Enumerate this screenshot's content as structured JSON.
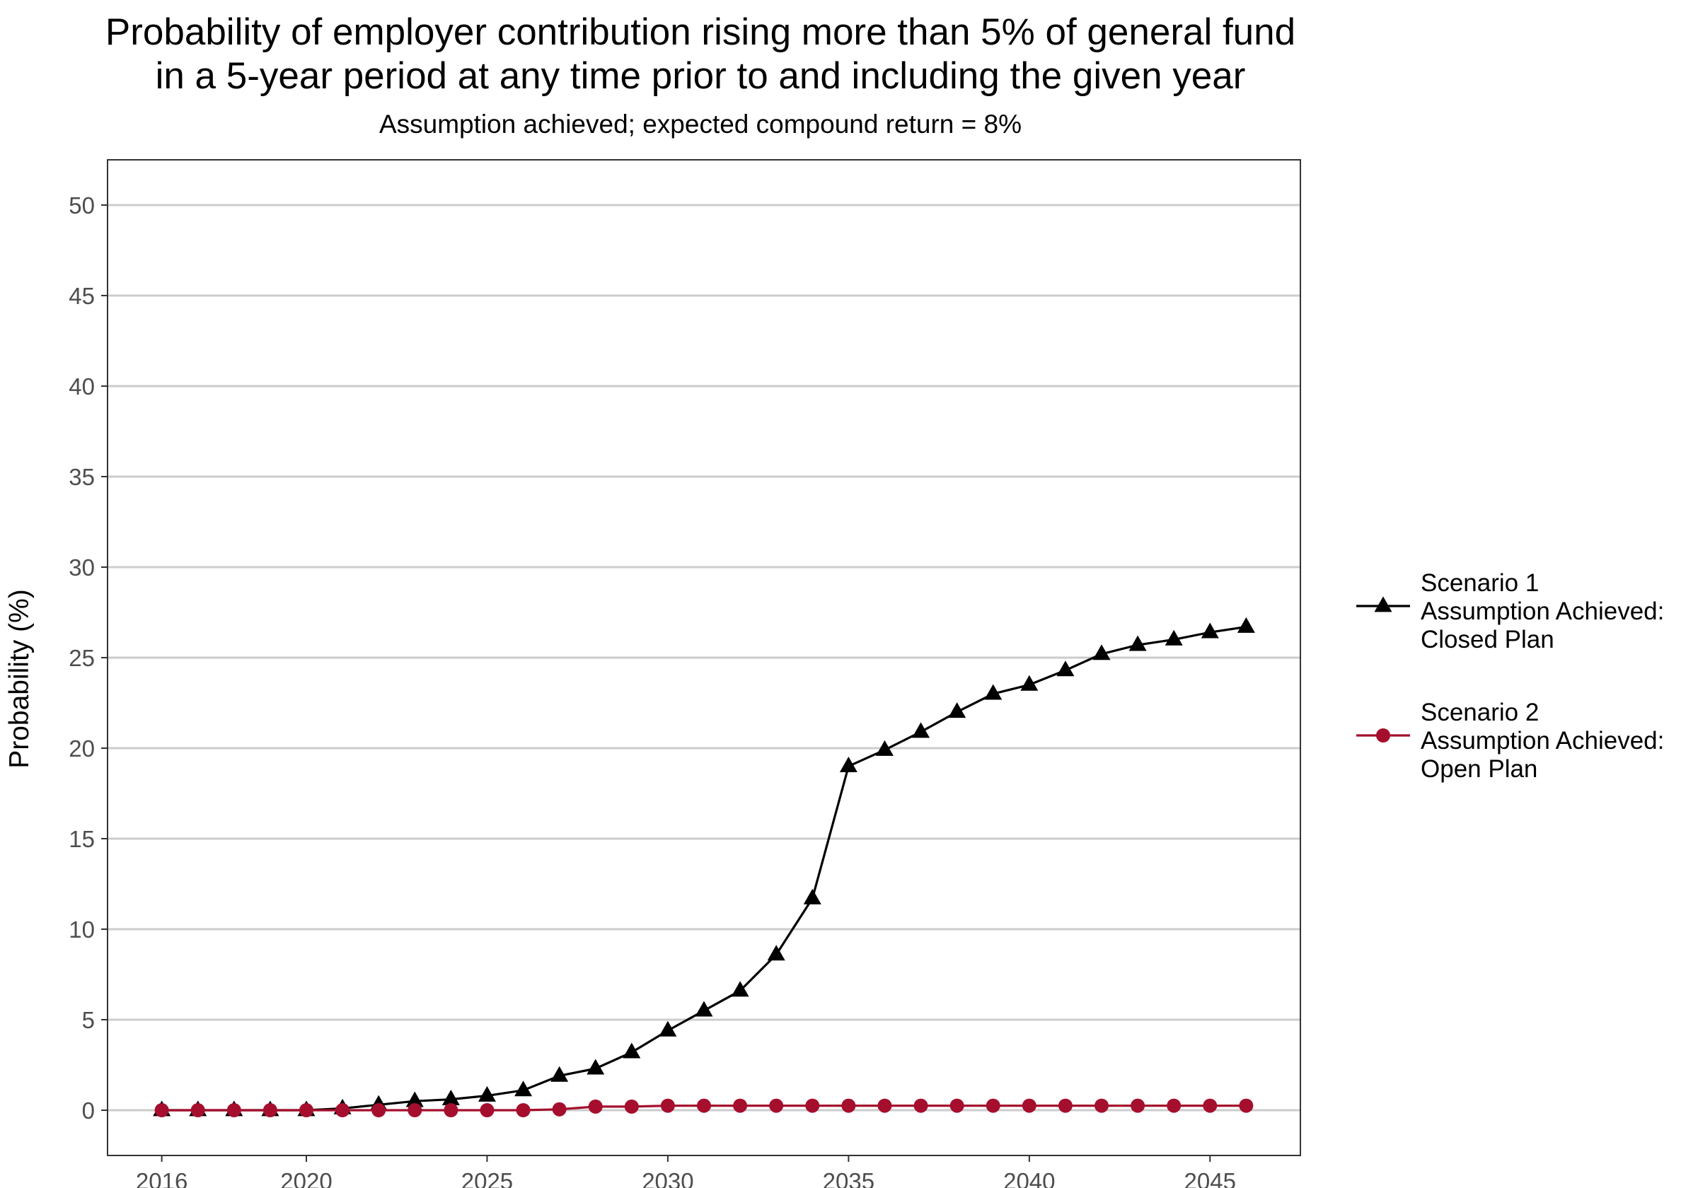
{
  "chart_data": {
    "type": "line",
    "title_lines": [
      "Probability of employer contribution rising more than 5% of general fund",
      "in a 5-year period at any time prior to and including the given year"
    ],
    "subtitle": "Assumption achieved; expected compound return = 8%",
    "xlabel": "",
    "ylabel": "Probability (%)",
    "xlim": [
      2014.5,
      2047.5
    ],
    "ylim": [
      -2.5,
      52.5
    ],
    "x_ticks": [
      2016,
      2020,
      2025,
      2030,
      2035,
      2040,
      2045
    ],
    "y_ticks": [
      0,
      5,
      10,
      15,
      20,
      25,
      30,
      35,
      40,
      45,
      50
    ],
    "grid": "horizontal major",
    "legend_position": "right",
    "x": [
      2016,
      2017,
      2018,
      2019,
      2020,
      2021,
      2022,
      2023,
      2024,
      2025,
      2026,
      2027,
      2028,
      2029,
      2030,
      2031,
      2032,
      2033,
      2034,
      2035,
      2036,
      2037,
      2038,
      2039,
      2040,
      2041,
      2042,
      2043,
      2044,
      2045,
      2046
    ],
    "series": [
      {
        "name_lines": [
          "Scenario 1",
          "Assumption Achieved:",
          "Closed Plan"
        ],
        "color": "#000000",
        "marker": "triangle",
        "values": [
          0,
          0,
          0,
          0,
          0,
          0.1,
          0.3,
          0.5,
          0.6,
          0.8,
          1.1,
          1.9,
          2.3,
          3.2,
          4.4,
          5.5,
          6.6,
          8.6,
          11.7,
          19.0,
          19.9,
          20.9,
          22.0,
          23.0,
          23.5,
          24.3,
          25.2,
          25.7,
          26.0,
          26.4,
          26.7
        ]
      },
      {
        "name_lines": [
          "Scenario 2",
          "Assumption Achieved:",
          "Open Plan"
        ],
        "color": "#a50f2d",
        "marker": "circle",
        "values": [
          0,
          0,
          0,
          0,
          0,
          0,
          0,
          0,
          0,
          0,
          0,
          0.05,
          0.2,
          0.2,
          0.25,
          0.25,
          0.25,
          0.25,
          0.25,
          0.25,
          0.25,
          0.25,
          0.25,
          0.25,
          0.25,
          0.25,
          0.25,
          0.25,
          0.25,
          0.25,
          0.25
        ]
      }
    ]
  }
}
